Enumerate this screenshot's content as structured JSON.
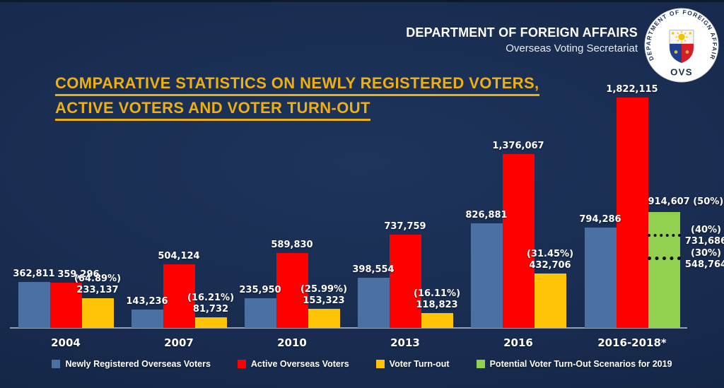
{
  "header": {
    "department": "DEPARTMENT OF FOREIGN AFFAIRS",
    "secretariat": "Overseas Voting Secretariat",
    "logo": {
      "ring_text": "DEPARTMENT OF FOREIGN AFFAIRS",
      "label": "OVS"
    }
  },
  "title": {
    "line1": "COMPARATIVE STATISTICS ON NEWLY REGISTERED VOTERS,",
    "line2": "ACTIVE VOTERS AND VOTER TURN-OUT"
  },
  "colors": {
    "background": "#182B4E",
    "title_gold": "#EDB00F",
    "text_white": "#FFFFFF",
    "axis_line": "#A7B3C6",
    "bar_blue": "#4B71A3",
    "bar_red": "#FE0000",
    "bar_yellow": "#FFC405",
    "bar_green": "#92D050"
  },
  "chart_data": {
    "type": "bar",
    "title": "COMPARATIVE STATISTICS ON NEWLY REGISTERED VOTERS, ACTIVE VOTERS AND VOTER TURN-OUT",
    "xlabel": "",
    "ylabel": "",
    "ylim": [
      0,
      1900000
    ],
    "grid": false,
    "legend_position": "bottom",
    "categories": [
      "2004",
      "2007",
      "2010",
      "2013",
      "2016",
      "2016-2018*"
    ],
    "series": [
      {
        "name": "Newly Registered Overseas Voters",
        "color": "#4B71A3",
        "values": [
          362811,
          143236,
          235950,
          398554,
          826881,
          794286
        ],
        "labels": [
          "362,811",
          "143,236",
          "235,950",
          "398,554",
          "826,881",
          "794,286"
        ]
      },
      {
        "name": "Active Overseas Voters",
        "color": "#FE0000",
        "values": [
          359296,
          504124,
          589830,
          737759,
          1376067,
          1822115
        ],
        "labels": [
          "359,296",
          "504,124",
          "589,830",
          "737,759",
          "1,376,067",
          "1,822,115"
        ]
      },
      {
        "name": "Voter Turn-out",
        "color": "#FFC405",
        "values": [
          233137,
          81732,
          153323,
          118823,
          432706,
          null
        ],
        "labels": [
          "233,137",
          "81,732",
          "153,323",
          "118,823",
          "432,706",
          null
        ],
        "percent_labels": [
          "(64.89%)",
          "(16.21%)",
          "(25.99%)",
          "(16.11%)",
          "(31.45%)",
          null
        ]
      },
      {
        "name": "Potential Voter Turn-Out Scenarios for 2019",
        "color": "#92D050",
        "values": [
          null,
          null,
          null,
          null,
          null,
          914607
        ],
        "labels": [
          null,
          null,
          null,
          null,
          null,
          "914,607 (50%)"
        ],
        "scenario_lines": [
          {
            "percent": "(40%)",
            "value": 731686,
            "label": "731,686"
          },
          {
            "percent": "(30%)",
            "value": 548764,
            "label": "548,764"
          }
        ]
      }
    ]
  }
}
